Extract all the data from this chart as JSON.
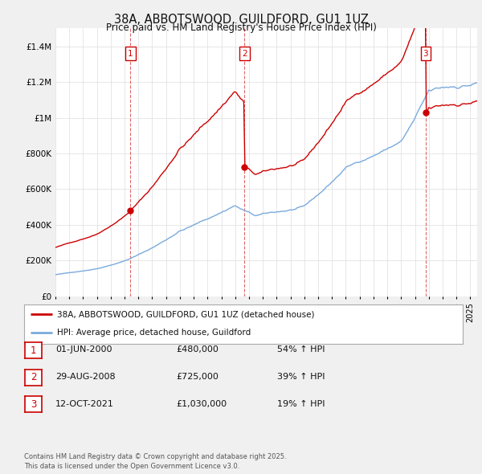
{
  "title": "38A, ABBOTSWOOD, GUILDFORD, GU1 1UZ",
  "subtitle": "Price paid vs. HM Land Registry's House Price Index (HPI)",
  "ytick_values": [
    0,
    200000,
    400000,
    600000,
    800000,
    1000000,
    1200000,
    1400000
  ],
  "ylim": [
    0,
    1500000
  ],
  "xlim_start": 1995.0,
  "xlim_end": 2025.5,
  "sales": [
    {
      "date_num": 2000.42,
      "price": 480000,
      "label": "1"
    },
    {
      "date_num": 2008.66,
      "price": 725000,
      "label": "2"
    },
    {
      "date_num": 2021.78,
      "price": 1030000,
      "label": "3"
    }
  ],
  "sale_line_color": "#cc0000",
  "sale_dot_color": "#cc0000",
  "hpi_line_color": "#7aaadd",
  "legend_items": [
    {
      "label": "38A, ABBOTSWOOD, GUILDFORD, GU1 1UZ (detached house)",
      "color": "#cc0000"
    },
    {
      "label": "HPI: Average price, detached house, Guildford",
      "color": "#7aaadd"
    }
  ],
  "table_rows": [
    {
      "num": "1",
      "date": "01-JUN-2000",
      "price": "£480,000",
      "hpi": "54% ↑ HPI"
    },
    {
      "num": "2",
      "date": "29-AUG-2008",
      "price": "£725,000",
      "hpi": "39% ↑ HPI"
    },
    {
      "num": "3",
      "date": "12-OCT-2021",
      "price": "£1,030,000",
      "hpi": "19% ↑ HPI"
    }
  ],
  "footnote": "Contains HM Land Registry data © Crown copyright and database right 2025.\nThis data is licensed under the Open Government Licence v3.0.",
  "bg_color": "#f0f0f0",
  "plot_bg_color": "#ffffff",
  "grid_color": "#dddddd"
}
